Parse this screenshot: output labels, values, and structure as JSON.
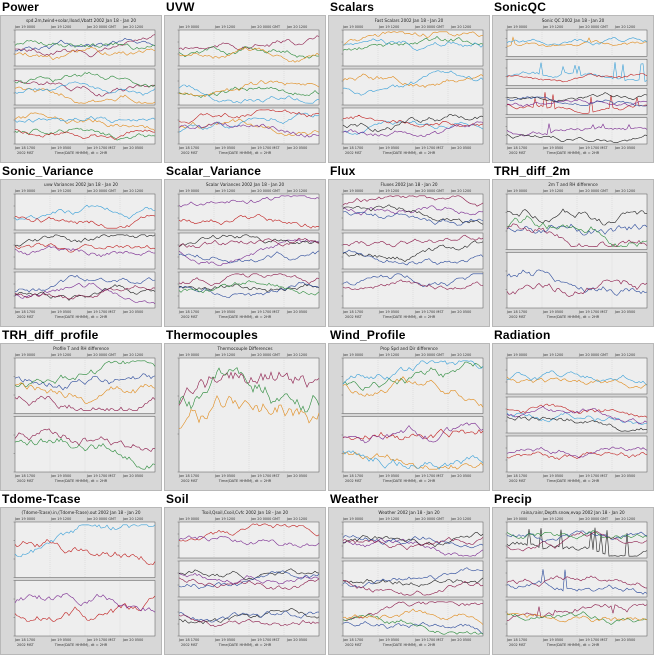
{
  "panels": [
    {
      "title": "Power",
      "plot_title": "spd.2m,twind+solar,Iload,Vbatt 2002 Jan 18 - Jan 20",
      "nsub": 3
    },
    {
      "title": "UVW",
      "plot_title": "",
      "nsub": 3
    },
    {
      "title": "Scalars",
      "plot_title": "Fast Scalars 2002 Jan 18 - Jan 20",
      "nsub": 3
    },
    {
      "title": "SonicQC",
      "plot_title": "Sonic QC 2002 Jan 18 - Jan 20",
      "nsub": 4
    },
    {
      "title": "Sonic_Variance",
      "plot_title": "uvw Variances 2002 Jan 18 - Jan 20",
      "nsub": 3
    },
    {
      "title": "Scalar_Variance",
      "plot_title": "Scalar Variances 2002 Jan 18 - Jan 20",
      "nsub": 3
    },
    {
      "title": "Flux",
      "plot_title": "Fluxes 2002 Jan 18 - Jan 20",
      "nsub": 3
    },
    {
      "title": "TRH_diff_2m",
      "plot_title": "2m T and RH difference",
      "nsub": 2
    },
    {
      "title": "TRH_diff_profile",
      "plot_title": "Profile T and RH difference",
      "nsub": 2
    },
    {
      "title": "Thermocouples",
      "plot_title": "Thermocouple Differences",
      "nsub": 1
    },
    {
      "title": "Wind_Profile",
      "plot_title": "Prop Spd and Dir difference",
      "nsub": 2
    },
    {
      "title": "Radiation",
      "plot_title": "",
      "nsub": 3
    },
    {
      "title": "Tdome-Tcase",
      "plot_title": "(Tdome-Tcase).in,(Tdome-Tcase).out 2002 Jan 18 - Jan 20",
      "nsub": 2
    },
    {
      "title": "Soil",
      "plot_title": "Tsoil,Qsoil,Csoil,Cvfc 2002 Jan 18 - Jan 20",
      "nsub": 3
    },
    {
      "title": "Weather",
      "plot_title": "Weather 2002 Jan 18 - Jan 20",
      "nsub": 3
    },
    {
      "title": "Precip",
      "plot_title": "raina,rainr,Depth.snow,evap 2002 Jan 18 - Jan 20",
      "nsub": 3
    }
  ],
  "top_axis_labels": [
    "Jan 19 0000",
    "Jan 19 1200",
    "Jan 20 0000 GMT",
    "Jan 20 1200"
  ],
  "bottom_axis_labels": [
    "Jan 18 1700",
    "Jan 19 0500",
    "Jan 19 1700 MST",
    "Jan 20 0500"
  ],
  "xlabel": "Time(DATE HHMM), dt = 2HR",
  "year_label": "2002 MST",
  "colors": {
    "bg": "#d7d7d7",
    "plot_bg": "#eeeeee",
    "series": [
      "#2b4a9b",
      "#8b1a4a",
      "#2a8a3a",
      "#e08a1a",
      "#3aa0d8",
      "#c02020",
      "#7a2a90",
      "#222222"
    ]
  }
}
